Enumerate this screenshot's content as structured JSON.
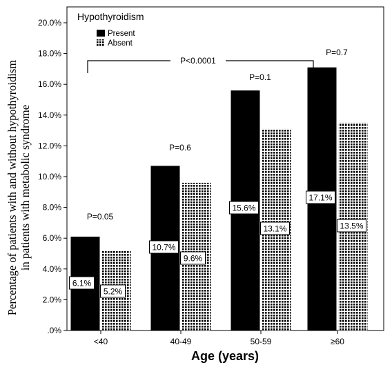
{
  "chart_data": {
    "type": "bar",
    "legend_title": "Hypothyroidism",
    "legend_position": "top-left",
    "categories": [
      "<40",
      "40-49",
      "50-59",
      "≥60"
    ],
    "series": [
      {
        "name": "Present",
        "values": [
          6.1,
          10.7,
          15.6,
          17.1
        ],
        "fill": "solid-black",
        "color": "#000000"
      },
      {
        "name": "Absent",
        "values": [
          5.2,
          9.6,
          13.1,
          13.5
        ],
        "fill": "checkered-pattern",
        "color": "#000000"
      }
    ],
    "data_labels": [
      [
        "6.1%",
        "10.7%",
        "15.6%",
        "17.1%"
      ],
      [
        "5.2%",
        "9.6%",
        "13.1%",
        "13.5%"
      ]
    ],
    "p_values": [
      "P=0.05",
      "P=0.6",
      "P=0.1",
      "P=0.7"
    ],
    "overall_trend_label": "P<0.0001",
    "xlabel": "Age (years)",
    "ylabel_lines": [
      "Percentage of patients with and without hypothyroidism",
      "in patients with metabolic syndrome"
    ],
    "ylim": [
      0,
      20
    ],
    "yticks": [
      0,
      2,
      4,
      6,
      8,
      10,
      12,
      14,
      16,
      18,
      20
    ],
    "ytick_labels": [
      ".0%",
      "2.0%",
      "4.0%",
      "6.0%",
      "8.0%",
      "10.0%",
      "12.0%",
      "14.0%",
      "16.0%",
      "18.0%",
      "20.0%"
    ],
    "grid": false
  }
}
